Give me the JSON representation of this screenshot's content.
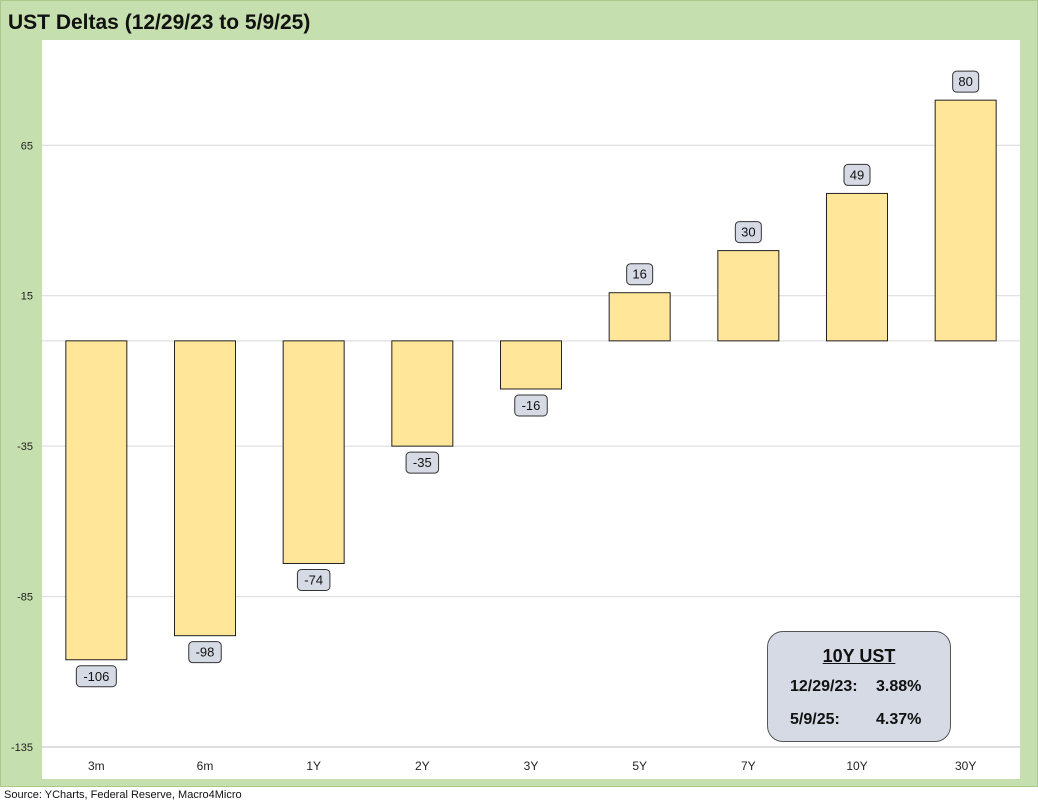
{
  "title": "UST Deltas (12/29/23 to 5/9/25)",
  "source": "Source: YCharts, Federal Reserve, Macro4Micro",
  "chart_data": {
    "type": "bar",
    "categories": [
      "3m",
      "6m",
      "1Y",
      "2Y",
      "3Y",
      "5Y",
      "7Y",
      "10Y",
      "30Y"
    ],
    "values": [
      -106,
      -98,
      -74,
      -35,
      -16,
      16,
      30,
      49,
      80
    ],
    "ylim": [
      -135,
      100
    ],
    "yticks": [
      -135,
      -85,
      -35,
      15,
      65
    ],
    "xlabel": "",
    "ylabel": "",
    "grid": true,
    "legend": "none",
    "bar_color": "#ffe699",
    "bar_stroke": "#222222",
    "label_box_color": "#d5dae4",
    "annotation": {
      "title": "10Y UST",
      "rows": [
        {
          "date": "12/29/23:",
          "value": "3.88%"
        },
        {
          "date": "5/9/25:",
          "value": "4.37%"
        }
      ]
    }
  }
}
